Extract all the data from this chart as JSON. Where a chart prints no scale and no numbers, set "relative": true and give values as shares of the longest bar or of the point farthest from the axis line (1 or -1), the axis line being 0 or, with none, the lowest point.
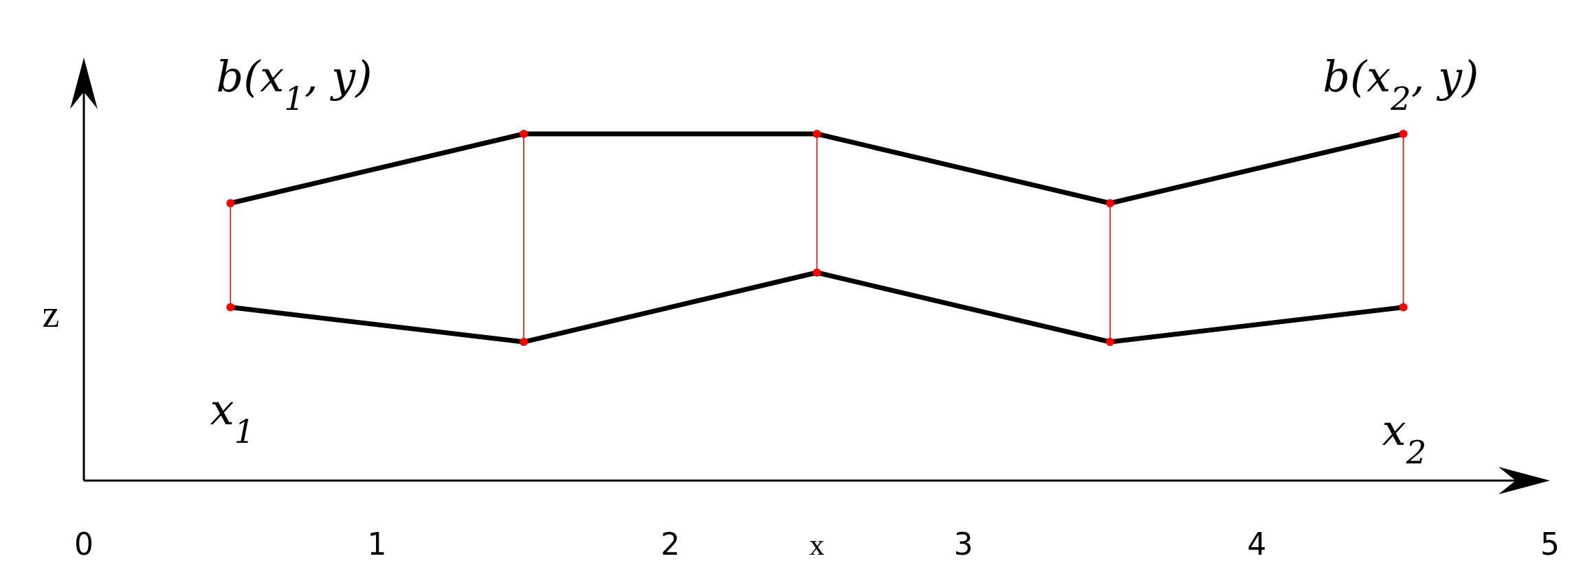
{
  "chart_data": {
    "type": "line",
    "relative": true,
    "xlabel": "x",
    "ylabel": "z",
    "xlim": [
      0,
      5
    ],
    "xticks": [
      0,
      1,
      2,
      3,
      4,
      5
    ],
    "grid": false,
    "series": [
      {
        "color": "#000000",
        "marker": "none",
        "x": [
          0.5,
          1.5,
          2.5,
          3.5,
          4.5
        ],
        "values": [
          0.8,
          1,
          1,
          0.8,
          1
        ]
      },
      {
        "color": "#000000",
        "marker": "none",
        "x": [
          0.5,
          1.5,
          2.5,
          3.5,
          4.5
        ],
        "values": [
          0.5,
          0.4,
          0.6,
          0.4,
          0.5
        ]
      },
      {
        "color": "#ff0000",
        "marker": "circle",
        "x": [
          0.5,
          0.5
        ],
        "values": [
          0.5,
          0.8
        ]
      },
      {
        "color": "#ff0000",
        "marker": "circle",
        "x": [
          1.5,
          1.5
        ],
        "values": [
          0.4,
          1
        ]
      },
      {
        "color": "#ff0000",
        "marker": "circle",
        "x": [
          2.5,
          2.5
        ],
        "values": [
          0.6,
          1
        ]
      },
      {
        "color": "#ff0000",
        "marker": "circle",
        "x": [
          3.5,
          3.5
        ],
        "values": [
          0.4,
          0.8
        ]
      },
      {
        "color": "#ff0000",
        "marker": "circle",
        "x": [
          4.5,
          4.5
        ],
        "values": [
          0.5,
          1
        ]
      }
    ],
    "annotations": [
      "b(x$_{1}$, y)",
      "b(x$_{2}$, y)",
      "x$_{1}$",
      "x$_{2}$"
    ]
  }
}
